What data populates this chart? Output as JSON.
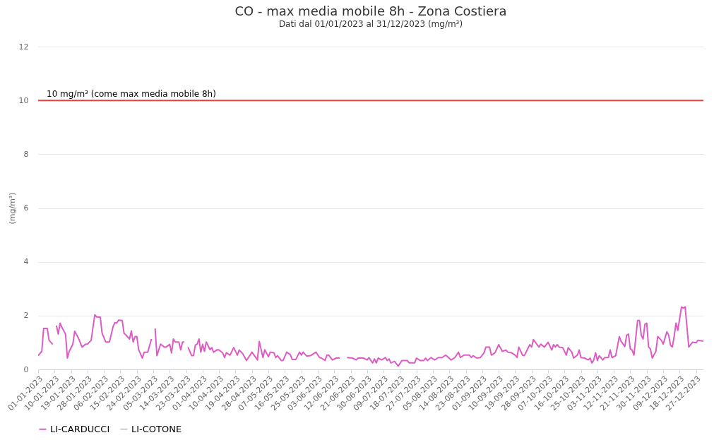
{
  "chart_data": {
    "type": "line",
    "title": "CO - max media mobile 8h - Zona Costiera",
    "subtitle": "Dati dal 01/01/2023 al 31/12/2023 (mg/m³)",
    "ylabel": "(mg/m³)",
    "xlim": [
      "2023-01-01",
      "2023-12-31"
    ],
    "xticks": [
      {
        "value": "2023-01-01",
        "label": "01-01-2023"
      },
      {
        "value": "2023-01-10",
        "label": "10-01-2023"
      },
      {
        "value": "2023-01-19",
        "label": "19-01-2023"
      },
      {
        "value": "2023-01-28",
        "label": "28-01-2023"
      },
      {
        "value": "2023-02-06",
        "label": "06-02-2023"
      },
      {
        "value": "2023-02-15",
        "label": "15-02-2023"
      },
      {
        "value": "2023-02-24",
        "label": "24-02-2023"
      },
      {
        "value": "2023-03-05",
        "label": "05-03-2023"
      },
      {
        "value": "2023-03-14",
        "label": "14-03-2023"
      },
      {
        "value": "2023-03-23",
        "label": "23-03-2023"
      },
      {
        "value": "2023-04-01",
        "label": "01-04-2023"
      },
      {
        "value": "2023-04-10",
        "label": "10-04-2023"
      },
      {
        "value": "2023-04-19",
        "label": "19-04-2023"
      },
      {
        "value": "2023-04-28",
        "label": "28-04-2023"
      },
      {
        "value": "2023-05-07",
        "label": "07-05-2023"
      },
      {
        "value": "2023-05-16",
        "label": "16-05-2023"
      },
      {
        "value": "2023-05-25",
        "label": "25-05-2023"
      },
      {
        "value": "2023-06-03",
        "label": "03-06-2023"
      },
      {
        "value": "2023-06-12",
        "label": "12-06-2023"
      },
      {
        "value": "2023-06-21",
        "label": "21-06-2023"
      },
      {
        "value": "2023-06-30",
        "label": "30-06-2023"
      },
      {
        "value": "2023-07-09",
        "label": "09-07-2023"
      },
      {
        "value": "2023-07-18",
        "label": "18-07-2023"
      },
      {
        "value": "2023-07-27",
        "label": "27-07-2023"
      },
      {
        "value": "2023-08-05",
        "label": "05-08-2023"
      },
      {
        "value": "2023-08-14",
        "label": "14-08-2023"
      },
      {
        "value": "2023-08-23",
        "label": "23-08-2023"
      },
      {
        "value": "2023-09-01",
        "label": "01-09-2023"
      },
      {
        "value": "2023-09-10",
        "label": "10-09-2023"
      },
      {
        "value": "2023-09-19",
        "label": "19-09-2023"
      },
      {
        "value": "2023-09-28",
        "label": "28-09-2023"
      },
      {
        "value": "2023-10-07",
        "label": "07-10-2023"
      },
      {
        "value": "2023-10-16",
        "label": "16-10-2023"
      },
      {
        "value": "2023-10-25",
        "label": "25-10-2023"
      },
      {
        "value": "2023-11-03",
        "label": "03-11-2023"
      },
      {
        "value": "2023-11-12",
        "label": "12-11-2023"
      },
      {
        "value": "2023-11-21",
        "label": "21-11-2023"
      },
      {
        "value": "2023-11-30",
        "label": "30-11-2023"
      },
      {
        "value": "2023-12-09",
        "label": "09-12-2023"
      },
      {
        "value": "2023-12-18",
        "label": "18-12-2023"
      },
      {
        "value": "2023-12-27",
        "label": "27-12-2023"
      }
    ],
    "ylim": [
      0,
      12
    ],
    "yticks": [
      0,
      2,
      4,
      6,
      8,
      10,
      12
    ],
    "grid": "y",
    "legend": "bottom",
    "ref_lines": [
      {
        "axis": "y",
        "value": 10,
        "label": "10 mg/m³ (come max media mobile 8h)",
        "color": "#e8423f"
      }
    ],
    "series": [
      {
        "name": "LI-CARDUCCI",
        "color": "#dd5cc4",
        "x": [
          "2023-01-01",
          "2023-01-03",
          "2023-01-04",
          "2023-01-06",
          "2023-01-07",
          "2023-01-09",
          "2023-01-10",
          "2023-01-11",
          "2023-01-12",
          "2023-01-13",
          "2023-01-14",
          "2023-01-16",
          "2023-01-17",
          "2023-01-18",
          "2023-01-20",
          "2023-01-21",
          "2023-01-23",
          "2023-01-25",
          "2023-01-27",
          "2023-01-28",
          "2023-01-30",
          "2023-02-01",
          "2023-02-02",
          "2023-02-04",
          "2023-02-05",
          "2023-02-07",
          "2023-02-09",
          "2023-02-11",
          "2023-02-12",
          "2023-02-13",
          "2023-02-14",
          "2023-02-16",
          "2023-02-17",
          "2023-02-18",
          "2023-02-20",
          "2023-02-21",
          "2023-02-22",
          "2023-02-23",
          "2023-02-24",
          "2023-02-25",
          "2023-02-27",
          "2023-02-28",
          "2023-03-02",
          "2023-03-04",
          "2023-03-05",
          "2023-03-06",
          "2023-03-07",
          "2023-03-09",
          "2023-03-11",
          "2023-03-12",
          "2023-03-14",
          "2023-03-15",
          "2023-03-16",
          "2023-03-17",
          "2023-03-19",
          "2023-03-20",
          "2023-03-21",
          "2023-03-22",
          "2023-03-23",
          "2023-03-24",
          "2023-03-26",
          "2023-03-27",
          "2023-03-28",
          "2023-03-29",
          "2023-03-30",
          "2023-03-31",
          "2023-04-01",
          "2023-04-02",
          "2023-04-03",
          "2023-04-05",
          "2023-04-06",
          "2023-04-07",
          "2023-04-09",
          "2023-04-10",
          "2023-04-12",
          "2023-04-13",
          "2023-04-14",
          "2023-04-16",
          "2023-04-18",
          "2023-04-20",
          "2023-04-21",
          "2023-04-23",
          "2023-04-25",
          "2023-04-28",
          "2023-05-01",
          "2023-05-02",
          "2023-05-04",
          "2023-05-05",
          "2023-05-07",
          "2023-05-08",
          "2023-05-10",
          "2023-05-11",
          "2023-05-12",
          "2023-05-14",
          "2023-05-15",
          "2023-05-17",
          "2023-05-19",
          "2023-05-20",
          "2023-05-22",
          "2023-05-24",
          "2023-05-25",
          "2023-05-26",
          "2023-05-28",
          "2023-05-30",
          "2023-06-02",
          "2023-06-04",
          "2023-06-05",
          "2023-06-07",
          "2023-06-08",
          "2023-06-09",
          "2023-06-11",
          "2023-06-13",
          "2023-06-15",
          "2023-06-17",
          "2023-06-19",
          "2023-06-22",
          "2023-06-24",
          "2023-06-25",
          "2023-06-28",
          "2023-06-30",
          "2023-07-01",
          "2023-07-03",
          "2023-07-04",
          "2023-07-05",
          "2023-07-06",
          "2023-07-08",
          "2023-07-10",
          "2023-07-11",
          "2023-07-12",
          "2023-07-13",
          "2023-07-15",
          "2023-07-17",
          "2023-07-19",
          "2023-07-22",
          "2023-07-23",
          "2023-07-26",
          "2023-07-27",
          "2023-07-29",
          "2023-07-31",
          "2023-08-01",
          "2023-08-02",
          "2023-08-04",
          "2023-08-06",
          "2023-08-08",
          "2023-08-10",
          "2023-08-12",
          "2023-08-15",
          "2023-08-17",
          "2023-08-19",
          "2023-08-20",
          "2023-08-22",
          "2023-08-25",
          "2023-08-26",
          "2023-08-27",
          "2023-08-29",
          "2023-08-31",
          "2023-09-02",
          "2023-09-03",
          "2023-09-05",
          "2023-09-06",
          "2023-09-08",
          "2023-09-10",
          "2023-09-12",
          "2023-09-14",
          "2023-09-15",
          "2023-09-17",
          "2023-09-19",
          "2023-09-20",
          "2023-09-21",
          "2023-09-23",
          "2023-09-24",
          "2023-09-27",
          "2023-09-28",
          "2023-09-29",
          "2023-10-02",
          "2023-10-03",
          "2023-10-05",
          "2023-10-07",
          "2023-10-09",
          "2023-10-10",
          "2023-10-11",
          "2023-10-12",
          "2023-10-13",
          "2023-10-15",
          "2023-10-17",
          "2023-10-18",
          "2023-10-20",
          "2023-10-21",
          "2023-10-23",
          "2023-10-24",
          "2023-10-25",
          "2023-10-27",
          "2023-10-29",
          "2023-10-30",
          "2023-10-31",
          "2023-11-01",
          "2023-11-02",
          "2023-11-03",
          "2023-11-04",
          "2023-11-06",
          "2023-11-07",
          "2023-11-09",
          "2023-11-10",
          "2023-11-11",
          "2023-11-13",
          "2023-11-15",
          "2023-11-16",
          "2023-11-18",
          "2023-11-19",
          "2023-11-20",
          "2023-11-21",
          "2023-11-22",
          "2023-11-23",
          "2023-11-25",
          "2023-11-26",
          "2023-11-27",
          "2023-11-28",
          "2023-11-29",
          "2023-11-30",
          "2023-12-01",
          "2023-12-02",
          "2023-12-03",
          "2023-12-05",
          "2023-12-06",
          "2023-12-08",
          "2023-12-09",
          "2023-12-11",
          "2023-12-12",
          "2023-12-13",
          "2023-12-14",
          "2023-12-15",
          "2023-12-16",
          "2023-12-17",
          "2023-12-19",
          "2023-12-20",
          "2023-12-21",
          "2023-12-23",
          "2023-12-25",
          "2023-12-27",
          "2023-12-28",
          "2023-12-31"
        ],
        "values": [
          0.51,
          0.67,
          1.52,
          1.52,
          1.08,
          0.93,
          null,
          1.63,
          1.31,
          1.72,
          1.56,
          1.31,
          0.42,
          0.67,
          0.94,
          1.42,
          1.17,
          0.83,
          0.94,
          0.94,
          1.08,
          2.03,
          1.95,
          1.94,
          1.34,
          1.02,
          1.02,
          1.59,
          1.74,
          1.72,
          1.83,
          1.82,
          1.34,
          1.28,
          1.13,
          1.43,
          1.02,
          1.22,
          1.22,
          0.73,
          0.42,
          0.64,
          0.64,
          1.13,
          null,
          1.52,
          0.51,
          0.94,
          0.83,
          0.83,
          0.93,
          0.61,
          1.13,
          1.02,
          1.02,
          0.72,
          1.02,
          1.02,
          null,
          0.83,
          0.51,
          0.51,
          0.9,
          0.94,
          1.13,
          0.64,
          0.93,
          0.67,
          1.02,
          0.73,
          0.81,
          0.64,
          0.73,
          0.72,
          0.61,
          0.44,
          0.62,
          0.53,
          0.81,
          0.53,
          0.72,
          0.58,
          0.33,
          0.64,
          0.35,
          1.04,
          0.44,
          0.73,
          0.47,
          0.64,
          0.62,
          0.44,
          0.51,
          0.33,
          0.33,
          0.64,
          0.55,
          0.37,
          0.37,
          0.64,
          0.53,
          0.64,
          0.49,
          0.51,
          0.64,
          0.44,
          0.42,
          0.33,
          0.53,
          0.53,
          0.35,
          0.42,
          0.42,
          null,
          0.44,
          0.42,
          0.35,
          0.42,
          0.42,
          0.35,
          0.44,
          0.24,
          0.39,
          0.24,
          0.42,
          0.35,
          0.44,
          0.33,
          0.39,
          0.24,
          0.3,
          0.12,
          0.33,
          0.33,
          0.24,
          0.24,
          0.42,
          0.33,
          0.33,
          0.42,
          0.33,
          0.44,
          0.35,
          0.44,
          0.44,
          0.53,
          0.35,
          0.44,
          0.64,
          0.44,
          0.53,
          0.53,
          0.44,
          0.51,
          0.42,
          0.44,
          0.62,
          0.83,
          0.83,
          0.53,
          0.62,
          0.92,
          0.67,
          0.72,
          0.64,
          0.62,
          0.53,
          0.44,
          0.83,
          0.53,
          0.51,
          0.92,
          0.83,
          1.11,
          0.83,
          0.94,
          0.83,
          1.01,
          0.72,
          0.92,
          0.83,
          0.92,
          0.83,
          0.81,
          0.53,
          0.81,
          0.64,
          0.42,
          0.53,
          0.72,
          0.44,
          0.42,
          0.35,
          0.42,
          0.24,
          0.35,
          0.62,
          0.33,
          0.51,
          0.35,
          0.44,
          0.44,
          0.72,
          0.44,
          0.51,
          1.22,
          1.04,
          0.85,
          1.27,
          1.31,
          0.76,
          0.72,
          0.53,
          1.82,
          1.82,
          1.27,
          1.13,
          1.68,
          1.72,
          0.83,
          0.76,
          0.42,
          0.67,
          1.22,
          1.08,
          0.94,
          1.4,
          1.27,
          0.9,
          0.83,
          1.22,
          1.72,
          1.45,
          2.32,
          2.28,
          2.32,
          0.83,
          1.01,
          0.99,
          1.08,
          1.05
        ]
      },
      {
        "name": "LI-COTONE",
        "color": "#cccccc"
      }
    ]
  }
}
